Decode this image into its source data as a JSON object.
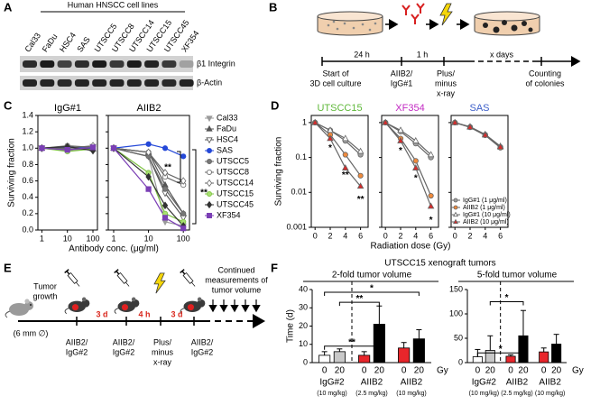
{
  "panel_labels": [
    "A",
    "B",
    "C",
    "D",
    "E",
    "F"
  ],
  "blot": {
    "title": "Human HNSCC cell lines",
    "lanes": [
      "Cal33",
      "FaDu",
      "HSC4",
      "SAS",
      "UTSCC5",
      "UTSCC8",
      "UTSCC14",
      "UTSCC15",
      "UTSCC45",
      "XF354"
    ],
    "rows": [
      "β1 Integrin",
      "β-Actin"
    ]
  },
  "schematic_b": {
    "intervals": [
      "24 h",
      "1 h",
      "x days"
    ],
    "steps": [
      [
        "Start of",
        "3D cell culture"
      ],
      [
        "AIIB2/",
        "IgG#1"
      ],
      [
        "Plus/",
        "minus",
        "x-ray"
      ],
      [
        "Counting",
        "of colonies"
      ]
    ]
  },
  "schematic_e": {
    "start": [
      "Tumor",
      "growth"
    ],
    "size": "(6 mm ∅)",
    "intervals": [
      "3 d",
      "4 h",
      "3 d"
    ],
    "steps": [
      [
        "AIIB2/",
        "IgG#2"
      ],
      [
        "AIIB2/",
        "IgG#2"
      ],
      [
        "Plus/",
        "minus",
        "x-ray"
      ],
      [
        "AIIB2/",
        "IgG#2"
      ]
    ],
    "followup": [
      "Continued",
      "measurements of",
      "tumor volume"
    ]
  },
  "chart_data": [
    {
      "type": "line",
      "title": "IgG#1",
      "ylabel": "Surviving fraction",
      "x": [
        1,
        10,
        100
      ],
      "xlog": true,
      "xlim": [
        0.7,
        150
      ],
      "xticks": [
        1,
        10,
        100
      ],
      "ylim": [
        0,
        1.4
      ],
      "yticks": [
        {
          "value": 0,
          "label": "0.0"
        },
        0.2,
        0.4,
        0.6,
        0.8,
        {
          "value": 1,
          "label": "1.0"
        },
        1.2,
        1.4
      ],
      "series": [
        {
          "color": "#9a9a9a",
          "marker": "triangle-down",
          "marker_fill": "#9a9a9a",
          "values": [
            1,
            0.97,
            1
          ]
        },
        {
          "color": "#555555",
          "marker": "triangle-up",
          "marker_fill": "#555555",
          "values": [
            1,
            1.02,
            0.99
          ]
        },
        {
          "color": "#555555",
          "marker": "triangle-down",
          "marker_fill": "#ffffff",
          "values": [
            1,
            0.98,
            1.02
          ]
        },
        {
          "color": "#2448d8",
          "marker": "circle",
          "marker_fill": "#2448d8",
          "values": [
            1,
            1.01,
            1
          ]
        },
        {
          "color": "#666666",
          "marker": "circle",
          "marker_fill": "#777777",
          "values": [
            1,
            0.99,
            0.98
          ]
        },
        {
          "color": "#666666",
          "marker": "circle",
          "marker_fill": "#ffffff",
          "values": [
            1,
            1.03,
            1.01
          ]
        },
        {
          "color": "#666666",
          "marker": "diamond",
          "marker_fill": "#ffffff",
          "values": [
            1,
            1,
            1.03
          ]
        },
        {
          "color": "#7dc242",
          "marker": "circle",
          "marker_fill": "#a8e070",
          "values": [
            1,
            0.96,
            0.99
          ]
        },
        {
          "color": "#333333",
          "marker": "diamond",
          "marker_fill": "#333333",
          "values": [
            1,
            1.02,
            0.97
          ]
        },
        {
          "color": "#7b3fb5",
          "marker": "square",
          "marker_fill": "#7b3fb5",
          "values": [
            1,
            0.98,
            1.01
          ]
        }
      ]
    },
    {
      "type": "line",
      "title": "AIIB2",
      "xlabel": "Antibody conc. (μg/ml)",
      "x": [
        1,
        10,
        30,
        100
      ],
      "xlog": true,
      "xlim": [
        0.7,
        150
      ],
      "xticks": [
        1,
        10,
        100
      ],
      "ylim": [
        0,
        1.4
      ],
      "legend": "right",
      "annotations": [
        "**",
        "**"
      ],
      "series": [
        {
          "name": "Cal33",
          "color": "#9a9a9a",
          "marker": "triangle-down",
          "marker_fill": "#9a9a9a",
          "values": [
            1,
            0.9,
            0.1,
            0.05
          ]
        },
        {
          "name": "FaDu",
          "color": "#555555",
          "marker": "triangle-up",
          "marker_fill": "#555555",
          "values": [
            1,
            0.95,
            0.55,
            0.2
          ]
        },
        {
          "name": "HSC4",
          "color": "#555555",
          "marker": "triangle-down",
          "marker_fill": "#ffffff",
          "values": [
            1,
            0.9,
            0.45,
            0.15
          ]
        },
        {
          "name": "SAS",
          "color": "#2448d8",
          "marker": "circle",
          "marker_fill": "#2448d8",
          "values": [
            1,
            1.05,
            1,
            0.9
          ]
        },
        {
          "name": "UTSCC5",
          "color": "#666666",
          "marker": "circle",
          "marker_fill": "#777777",
          "values": [
            1,
            0.9,
            0.5,
            0.2
          ]
        },
        {
          "name": "UTSCC8",
          "color": "#666666",
          "marker": "circle",
          "marker_fill": "#ffffff",
          "values": [
            1,
            0.95,
            0.65,
            0.55
          ]
        },
        {
          "name": "UTSCC14",
          "color": "#666666",
          "marker": "diamond",
          "marker_fill": "#ffffff",
          "values": [
            1,
            0.95,
            0.7,
            0.6
          ]
        },
        {
          "name": "UTSCC15",
          "color": "#7dc242",
          "marker": "circle",
          "marker_fill": "#a8e070",
          "values": [
            1,
            0.7,
            0.2,
            0.1
          ]
        },
        {
          "name": "UTSCC45",
          "color": "#333333",
          "marker": "diamond",
          "marker_fill": "#333333",
          "values": [
            1,
            0.65,
            0.3,
            0.05
          ]
        },
        {
          "name": "XF354",
          "color": "#7b3fb5",
          "marker": "square",
          "marker_fill": "#7b3fb5",
          "values": [
            1,
            0.5,
            0.15,
            0.02
          ]
        }
      ]
    },
    {
      "type": "line",
      "title": "UTSCC15",
      "title_color": "#5fb83a",
      "ylabel": "Surviving fraction",
      "x": [
        0,
        2,
        4,
        6
      ],
      "xlim": [
        -0.5,
        7
      ],
      "xticks": [
        0,
        2,
        4,
        6
      ],
      "ylog": true,
      "ylim": [
        0.001,
        1.6
      ],
      "yticks": [
        0.001,
        0.01,
        0.1,
        1
      ],
      "annotations": [
        "*",
        "**",
        "**"
      ],
      "series": [
        {
          "color": "#666666",
          "marker": "circle",
          "marker_fill": "#a0a0a0",
          "values": [
            1,
            0.6,
            0.3,
            0.12
          ]
        },
        {
          "color": "#666666",
          "marker": "circle",
          "marker_fill": "#ef8a3c",
          "values": [
            1,
            0.45,
            0.12,
            0.03
          ]
        },
        {
          "color": "#666666",
          "marker": "triangle-up",
          "marker_fill": "#ffffff",
          "values": [
            1,
            0.6,
            0.35,
            0.15
          ]
        },
        {
          "color": "#666666",
          "marker": "triangle-up",
          "marker_fill": "#d62a2a",
          "values": [
            1,
            0.35,
            0.05,
            0.015
          ]
        }
      ]
    },
    {
      "type": "line",
      "title": "XF354",
      "title_color": "#c32bc3",
      "xlabel": "Radiation dose (Gy)",
      "x": [
        0,
        2,
        4,
        6
      ],
      "xlim": [
        -0.5,
        7
      ],
      "xticks": [
        0,
        2,
        4,
        6
      ],
      "ylog": true,
      "ylim": [
        0.001,
        1.6
      ],
      "annotations": [
        "*",
        "*",
        "*"
      ],
      "series": [
        {
          "color": "#666666",
          "marker": "circle",
          "marker_fill": "#a0a0a0",
          "values": [
            1,
            0.55,
            0.25,
            0.1
          ]
        },
        {
          "color": "#666666",
          "marker": "circle",
          "marker_fill": "#ef8a3c",
          "values": [
            1,
            0.35,
            0.08,
            0.008
          ]
        },
        {
          "color": "#666666",
          "marker": "triangle-up",
          "marker_fill": "#ffffff",
          "values": [
            1,
            0.6,
            0.3,
            0.12
          ]
        },
        {
          "color": "#666666",
          "marker": "triangle-up",
          "marker_fill": "#d62a2a",
          "values": [
            1,
            0.3,
            0.05,
            0.004
          ]
        }
      ]
    },
    {
      "type": "line",
      "title": "SAS",
      "title_color": "#3d5fc9",
      "x": [
        0,
        2,
        4,
        6
      ],
      "xlim": [
        -0.5,
        7
      ],
      "xticks": [
        0,
        2,
        4,
        6
      ],
      "ylog": true,
      "ylim": [
        0.001,
        1.6
      ],
      "legend": "lower right",
      "series": [
        {
          "name": "IgG#1 (1 μg/ml)",
          "color": "#666666",
          "marker": "circle",
          "marker_fill": "#a0a0a0",
          "values": [
            1,
            0.75,
            0.45,
            0.2
          ]
        },
        {
          "name": "AIIB2 (1 μg/ml)",
          "color": "#666666",
          "marker": "circle",
          "marker_fill": "#ef8a3c",
          "values": [
            1,
            0.73,
            0.43,
            0.19
          ]
        },
        {
          "name": "IgG#1 (10 μg/ml)",
          "color": "#666666",
          "marker": "triangle-up",
          "marker_fill": "#ffffff",
          "values": [
            1,
            0.76,
            0.46,
            0.21
          ]
        },
        {
          "name": "AIIB2 (10 μg/ml)",
          "color": "#666666",
          "marker": "triangle-up",
          "marker_fill": "#d62a2a",
          "values": [
            1,
            0.74,
            0.44,
            0.2
          ]
        }
      ]
    },
    {
      "type": "bar",
      "title": "UTSCC15 xenograft tumors",
      "subtitle": "2-fold tumor volume",
      "ylabel": "Time (d)",
      "xlabel": "Gy",
      "categories": [
        "0",
        "20",
        "0",
        "20",
        "0",
        "20"
      ],
      "values": [
        4,
        6,
        4,
        21,
        8,
        13
      ],
      "errors": [
        2,
        1.5,
        2,
        10,
        3,
        5
      ],
      "colors": [
        "#ffffff",
        "#c8c8c8",
        "#e8262b",
        "#000000",
        "#e8262b",
        "#000000"
      ],
      "groups": [
        {
          "label": "IgG#2",
          "note": "(10 mg/kg)"
        },
        {
          "label": "AIIB2",
          "note": "(2.5 mg/kg)"
        },
        {
          "label": "AIIB2",
          "note": "(10 mg/kg)"
        }
      ],
      "ylim": [
        0,
        40
      ],
      "yticks": [
        0,
        10,
        20,
        30,
        40
      ],
      "annotations": [
        "*",
        "**",
        "**"
      ]
    },
    {
      "type": "bar",
      "subtitle": "5-fold tumor volume",
      "xlabel": "Gy",
      "categories": [
        "0",
        "20",
        "0",
        "20",
        "0",
        "20"
      ],
      "values": [
        12,
        25,
        13,
        55,
        22,
        38
      ],
      "errors": [
        15,
        30,
        3,
        52,
        8,
        20
      ],
      "colors": [
        "#ffffff",
        "#c8c8c8",
        "#e8262b",
        "#000000",
        "#e8262b",
        "#000000"
      ],
      "groups": [
        {
          "label": "IgG#2",
          "note": "(10 mg/kg)"
        },
        {
          "label": "AIIB2",
          "note": "(2.5 mg/kg)"
        },
        {
          "label": "AIIB2",
          "note": "(10 mg/kg)"
        }
      ],
      "ylim": [
        0,
        150
      ],
      "yticks": [
        0,
        50,
        100,
        150
      ],
      "annotations": [
        "*",
        "*"
      ]
    }
  ]
}
